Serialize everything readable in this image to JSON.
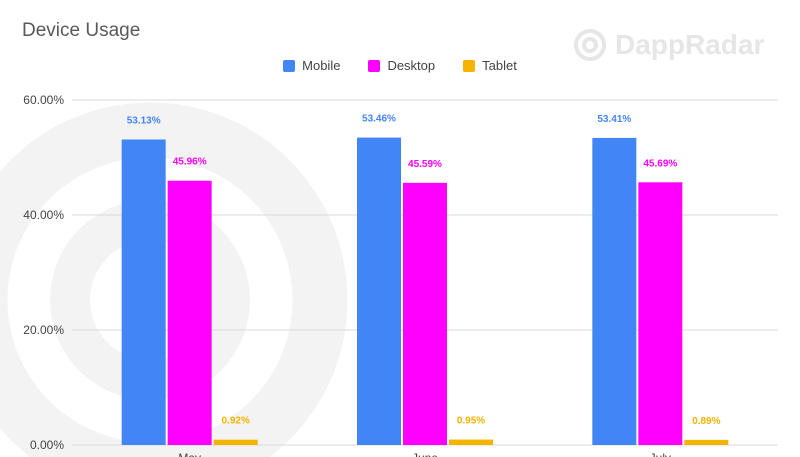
{
  "chart_data": {
    "type": "bar",
    "title": "Device Usage",
    "categories": [
      "May",
      "June",
      "July"
    ],
    "series": [
      {
        "name": "Mobile",
        "values": [
          53.13,
          53.46,
          53.41
        ],
        "labels": [
          "53.13%",
          "53.46%",
          "53.41%"
        ],
        "color": "#4285f4"
      },
      {
        "name": "Desktop",
        "values": [
          45.96,
          45.59,
          45.69
        ],
        "labels": [
          "45.96%",
          "45.59%",
          "45.69%"
        ],
        "color": "#ff00ff"
      },
      {
        "name": "Tablet",
        "values": [
          0.92,
          0.95,
          0.89
        ],
        "labels": [
          "0.92%",
          "0.95%",
          "0.89%"
        ],
        "color": "#f4b400"
      }
    ],
    "yticks": [
      0,
      20,
      40,
      60
    ],
    "ytick_labels": [
      "0.00%",
      "20.00%",
      "40.00%",
      "60.00%"
    ],
    "ylim": [
      0,
      60
    ],
    "grid": true,
    "legend_position": "top-center"
  },
  "watermark": {
    "text": "DappRadar",
    "icon": "dappradar-logo-icon",
    "color": "#e6e6e6"
  },
  "colors": {
    "gridline": "#d9d9d9",
    "axis_text": "#595959",
    "background": "#ffffff"
  }
}
